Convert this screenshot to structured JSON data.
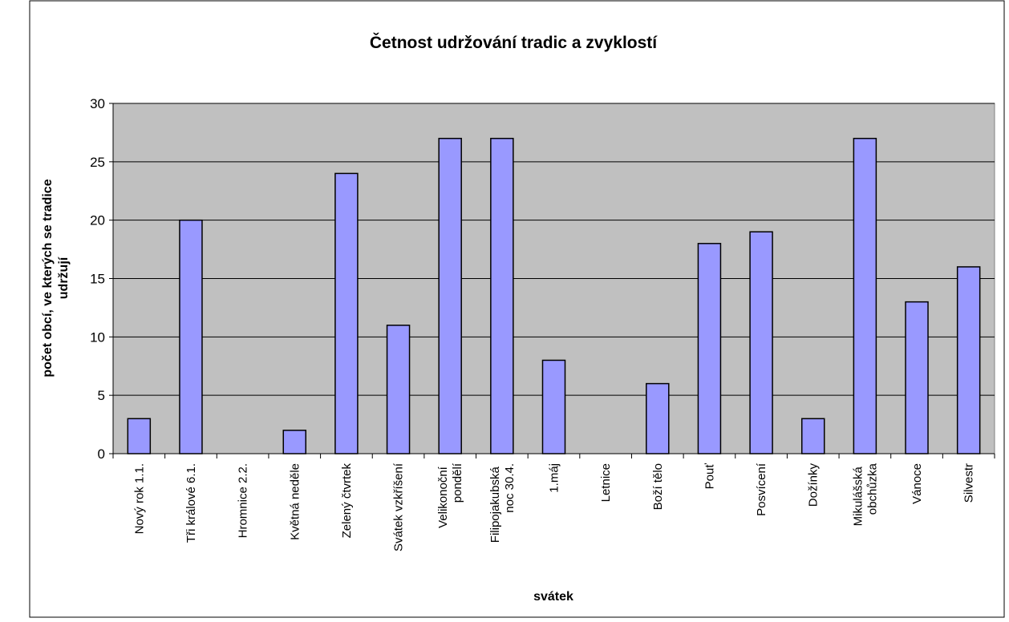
{
  "chart_data": {
    "type": "bar",
    "title": "Četnost udržování tradic a zvyklostí",
    "xlabel": "svátek",
    "ylabel": [
      "počet obcí, ve kterých se tradice",
      "udržují"
    ],
    "categories": [
      "Nový rok 1.1.",
      "Tři králové 6.1.",
      "Hromnice 2.2.",
      "Květná neděle",
      "Zelený čtvrtek",
      "Svátek vzkříšení",
      "Velikonoční pondělí",
      "Filipojakubská noc 30.4.",
      "1.máj",
      "Letnice",
      "Boží tělo",
      "Pouť",
      "Posvícení",
      "Dožínky",
      "Mikulášská obchůzka",
      "Vánoce",
      "Silvestr"
    ],
    "values": [
      3,
      20,
      0,
      2,
      24,
      11,
      27,
      27,
      8,
      0,
      6,
      18,
      19,
      3,
      27,
      13,
      16
    ],
    "color": "#9999ff",
    "ylim": [
      0,
      30
    ],
    "yticks": [
      0,
      5,
      10,
      15,
      20,
      25,
      30
    ],
    "grid": true
  }
}
